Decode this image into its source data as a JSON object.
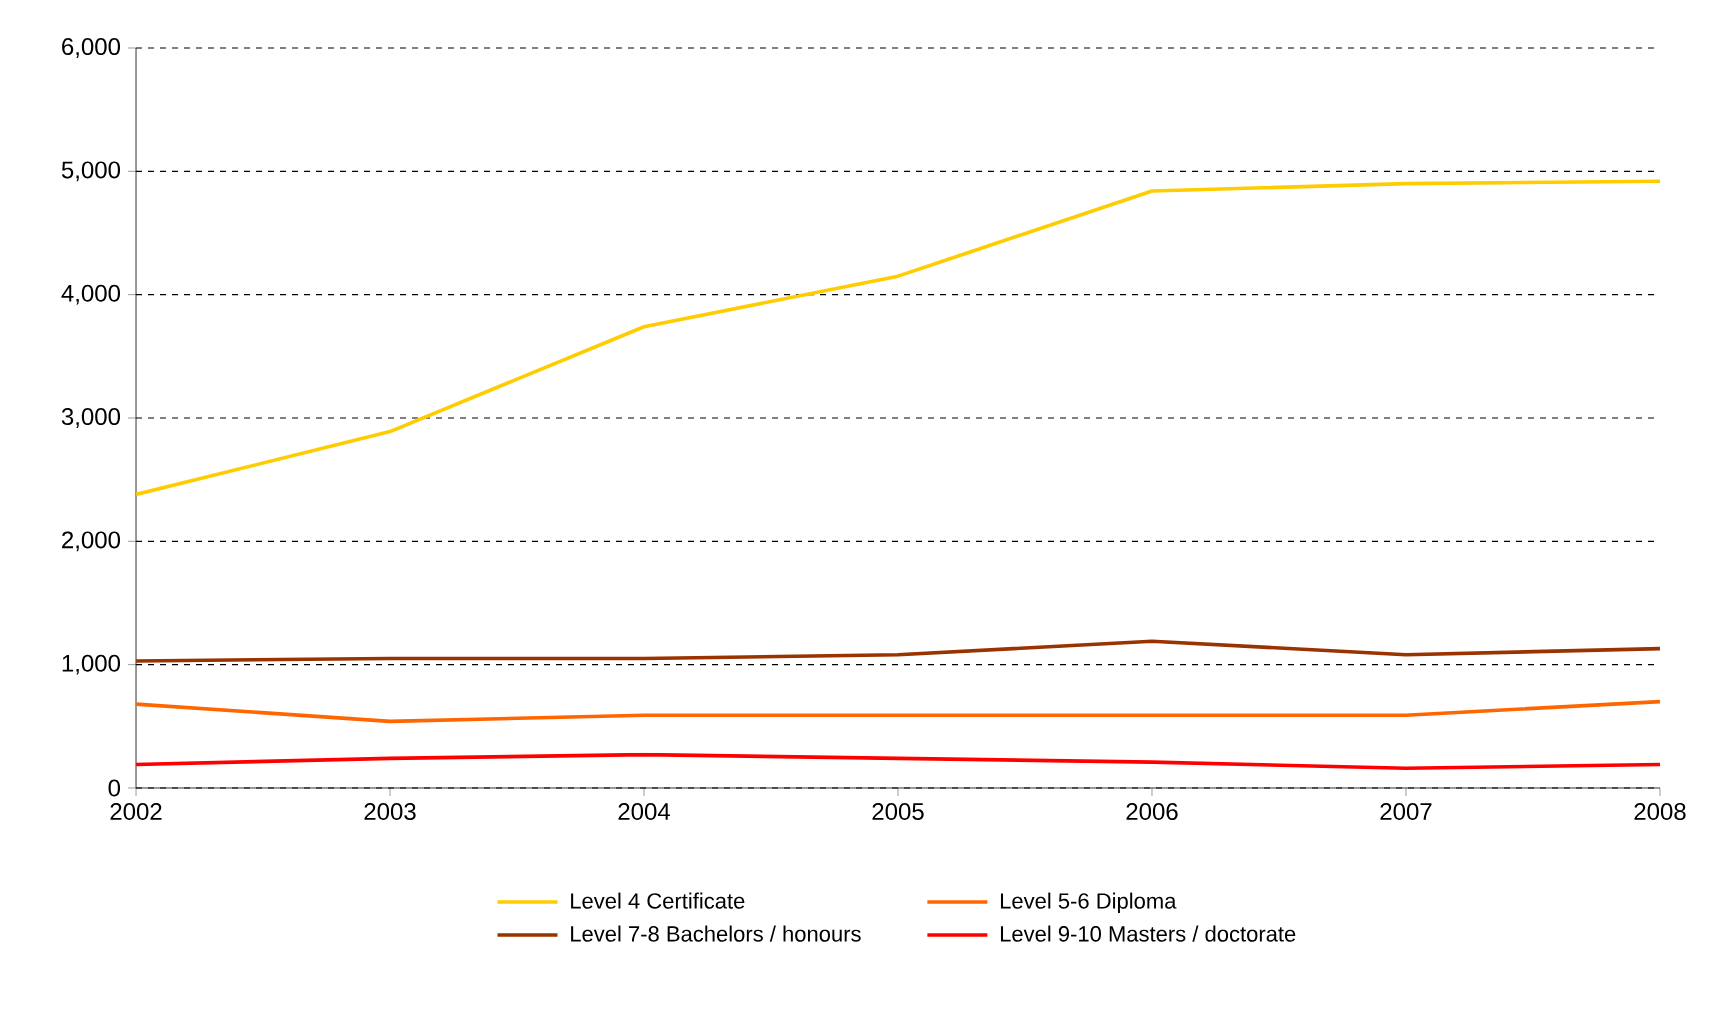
{
  "chart_data": {
    "type": "line",
    "x": [
      2002,
      2003,
      2004,
      2005,
      2006,
      2007,
      2008
    ],
    "xlim": [
      2002,
      2008
    ],
    "xticks": [
      2002,
      2003,
      2004,
      2005,
      2006,
      2007,
      2008
    ],
    "ylim": [
      0,
      6000
    ],
    "yticks": [
      {
        "value": 0,
        "label": "0"
      },
      {
        "value": 1000,
        "label": "1,000"
      },
      {
        "value": 2000,
        "label": "2,000"
      },
      {
        "value": 3000,
        "label": "3,000"
      },
      {
        "value": 4000,
        "label": "4,000"
      },
      {
        "value": 5000,
        "label": "5,000"
      },
      {
        "value": 6000,
        "label": "6,000"
      }
    ],
    "grid": "y",
    "legend": "bottom",
    "marker": "none",
    "line_style": "solid",
    "series": [
      {
        "name": "Level 4 Certificate",
        "color": "#ffcc00",
        "values": [
          2380,
          2890,
          3740,
          4150,
          4840,
          4900,
          4920
        ]
      },
      {
        "name": "Level 5-6 Diploma",
        "color": "#ff6600",
        "values": [
          680,
          540,
          590,
          590,
          590,
          590,
          700
        ]
      },
      {
        "name": "Level 7-8 Bachelors / honours",
        "color": "#993300",
        "values": [
          1030,
          1050,
          1050,
          1080,
          1190,
          1080,
          1130
        ]
      },
      {
        "name": "Level 9-10 Masters / doctorate",
        "color": "#ff0000",
        "values": [
          190,
          240,
          270,
          240,
          210,
          160,
          190
        ]
      }
    ]
  }
}
